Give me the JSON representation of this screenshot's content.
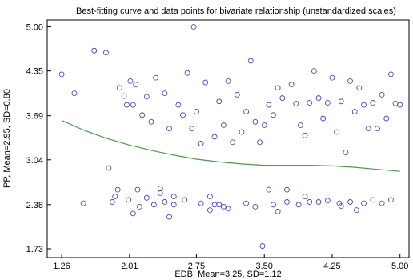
{
  "chart_data": {
    "type": "scatter",
    "title": "Best-fitting curve and data points for bivariate relationship (unstandardized scales)",
    "xlabel": "EDB, Mean=3.25, SD=1.12",
    "ylabel": "PP, Mean=2.95, SD=0.80",
    "xlim": [
      1.1,
      5.1
    ],
    "ylim": [
      1.6,
      5.1
    ],
    "x_ticks": [
      "1.26",
      "2.01",
      "2.75",
      "3.50",
      "4.25",
      "5.00"
    ],
    "y_ticks": [
      "1.73",
      "2.38",
      "3.04",
      "3.69",
      "4.35",
      "5.00"
    ],
    "grid": false,
    "point_color": "#3333cc",
    "curve_color": "#4a9a4a",
    "series": [
      {
        "kind": "points",
        "x": [
          1.26,
          1.4,
          1.5,
          1.62,
          1.75,
          1.78,
          1.85,
          1.88,
          1.9,
          1.95,
          1.98,
          2.0,
          2.02,
          2.05,
          2.08,
          2.1,
          2.15,
          2.2,
          2.25,
          2.3,
          2.35,
          2.4,
          2.45,
          2.5,
          2.55,
          2.6,
          2.65,
          2.7,
          2.75,
          2.8,
          2.85,
          2.9,
          2.95,
          3.0,
          3.05,
          3.1,
          3.15,
          3.2,
          3.25,
          3.3,
          3.35,
          3.4,
          3.45,
          3.5,
          3.55,
          3.6,
          3.65,
          3.7,
          3.75,
          3.8,
          3.85,
          3.9,
          3.95,
          4.0,
          4.05,
          4.1,
          4.15,
          4.2,
          4.25,
          4.3,
          4.35,
          4.4,
          4.45,
          4.5,
          4.55,
          4.6,
          4.65,
          4.7,
          4.75,
          4.8,
          4.85,
          4.9,
          4.95,
          5.0,
          2.72,
          3.48,
          1.82,
          2.28,
          3.1,
          4.33,
          2.4,
          2.9,
          3.6,
          4.1,
          4.6,
          2.12,
          2.62,
          3.3,
          3.88,
          4.45,
          2.05,
          2.5,
          3.0,
          3.55,
          4.0,
          4.52,
          2.2,
          2.8,
          3.4,
          3.95,
          4.7,
          2.35,
          2.95,
          3.65,
          4.2,
          4.8,
          2.45,
          3.05,
          3.75,
          4.35,
          4.9
        ],
        "y": [
          4.3,
          4.02,
          2.4,
          4.65,
          4.62,
          2.92,
          2.5,
          2.6,
          4.1,
          3.98,
          3.85,
          2.45,
          4.2,
          3.85,
          4.15,
          2.6,
          3.7,
          3.97,
          3.6,
          4.25,
          2.55,
          4.02,
          3.5,
          2.38,
          3.85,
          3.7,
          4.32,
          3.5,
          3.75,
          3.28,
          4.18,
          2.5,
          3.38,
          3.9,
          3.55,
          4.2,
          3.3,
          4.0,
          3.45,
          3.75,
          4.5,
          3.6,
          3.3,
          3.55,
          3.85,
          3.7,
          4.1,
          3.95,
          2.6,
          4.15,
          3.87,
          3.55,
          3.4,
          3.88,
          4.35,
          3.95,
          3.65,
          3.88,
          4.25,
          3.45,
          3.9,
          3.15,
          4.2,
          3.75,
          4.1,
          3.85,
          3.5,
          3.88,
          3.5,
          4.0,
          3.65,
          4.3,
          3.87,
          3.85,
          5.0,
          1.77,
          2.42,
          2.38,
          2.32,
          2.4,
          2.42,
          2.3,
          2.38,
          2.42,
          2.4,
          2.35,
          2.45,
          2.4,
          2.38,
          2.42,
          2.25,
          2.5,
          2.38,
          2.6,
          2.42,
          2.3,
          2.48,
          2.4,
          2.35,
          2.5,
          2.45,
          2.62,
          2.38,
          2.28,
          2.44,
          2.4,
          2.2,
          2.35,
          2.42,
          2.36,
          2.45
        ]
      },
      {
        "kind": "curve",
        "x": [
          1.26,
          1.5,
          1.75,
          2.0,
          2.25,
          2.5,
          2.75,
          3.0,
          3.25,
          3.5,
          3.75,
          4.0,
          4.25,
          4.5,
          4.75,
          5.0
        ],
        "y": [
          3.62,
          3.48,
          3.36,
          3.26,
          3.18,
          3.11,
          3.05,
          3.01,
          2.98,
          2.96,
          2.96,
          2.96,
          2.95,
          2.93,
          2.9,
          2.87
        ]
      }
    ]
  }
}
